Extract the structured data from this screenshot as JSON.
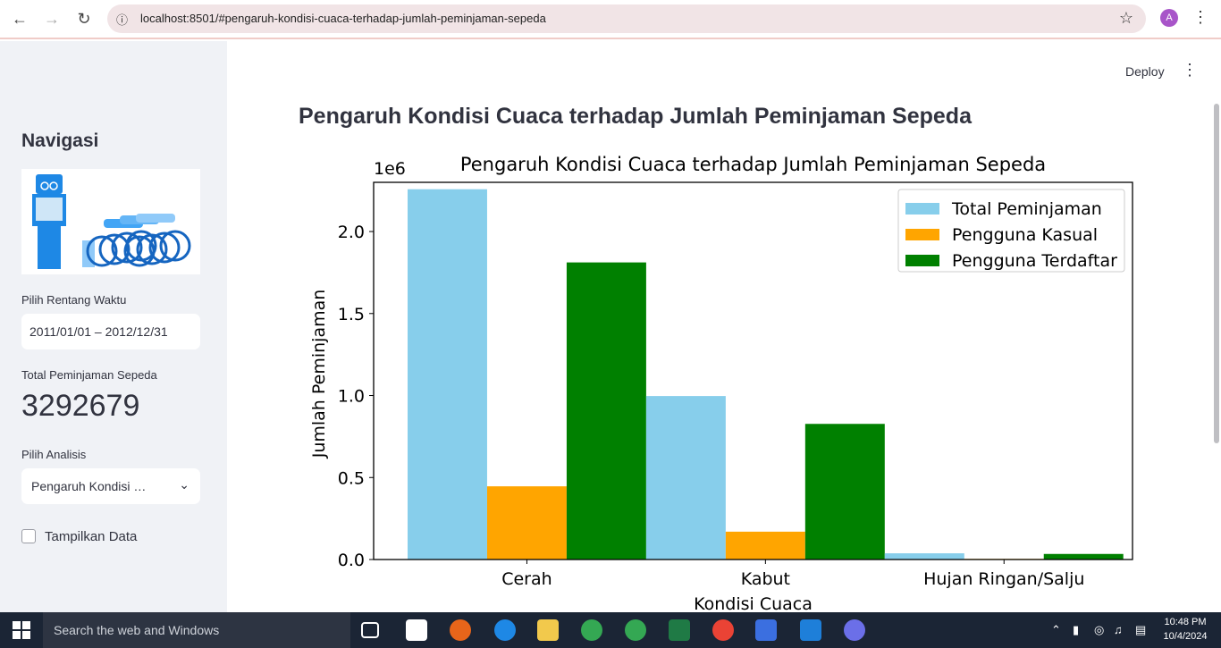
{
  "browser": {
    "url": "localhost:8501/#pengaruh-kondisi-cuaca-terhadap-jumlah-peminjaman-sepeda",
    "avatar_letter": "A"
  },
  "sidebar": {
    "title": "Navigasi",
    "date_label": "Pilih Rentang Waktu",
    "date_value": "2011/01/01 – 2012/12/31",
    "metric_label": "Total Peminjaman Sepeda",
    "metric_value": "3292679",
    "analysis_label": "Pilih Analisis",
    "analysis_value": "Pengaruh Kondisi …",
    "checkbox_label": "Tampilkan Data"
  },
  "main": {
    "deploy_label": "Deploy",
    "page_title": "Pengaruh Kondisi Cuaca terhadap Jumlah Peminjaman Sepeda"
  },
  "taskbar": {
    "search_placeholder": "Search the web and Windows",
    "time": "10:48 PM",
    "date": "10/4/2024"
  },
  "chart_data": {
    "type": "bar",
    "title": "Pengaruh Kondisi Cuaca terhadap Jumlah Peminjaman Sepeda",
    "xlabel": "Kondisi Cuaca",
    "ylabel": "Jumlah Peminjaman",
    "scale_label": "1e6",
    "categories": [
      "Cerah",
      "Kabut",
      "Hujan Ringan/Salju"
    ],
    "series": [
      {
        "name": "Total Peminjaman",
        "color": "#87ceeb",
        "values": [
          2257952,
          996858,
          37869
        ]
      },
      {
        "name": "Pengguna Kasual",
        "color": "#ffa500",
        "values": [
          446346,
          169776,
          3895
        ]
      },
      {
        "name": "Pengguna Terdaftar",
        "color": "#008000",
        "values": [
          1811606,
          827082,
          33974
        ]
      }
    ],
    "ylim": [
      0,
      2.3
    ],
    "yticks": [
      "0.0",
      "0.5",
      "1.0",
      "1.5",
      "2.0"
    ],
    "legend_position": "top-right"
  }
}
